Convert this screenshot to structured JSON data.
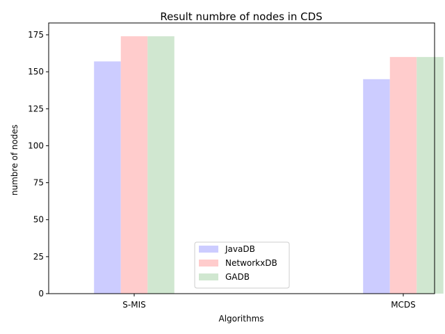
{
  "chart_data": {
    "type": "bar",
    "title": "Result numbre of nodes in CDS",
    "xlabel": "Algorithms",
    "ylabel": "numbre of nodes",
    "categories": [
      "S-MIS",
      "MCDS"
    ],
    "series": [
      {
        "name": "JavaDB",
        "values": [
          157,
          145
        ],
        "color": "#ccccff"
      },
      {
        "name": "NetworkxDB",
        "values": [
          174,
          160
        ],
        "color": "#ffcccc"
      },
      {
        "name": "GADB",
        "values": [
          174,
          160
        ],
        "color": "#d0e7d0"
      }
    ],
    "ylim": [
      0,
      183
    ],
    "yticks": [
      0,
      25,
      50,
      75,
      100,
      125,
      150,
      175
    ],
    "grid": false,
    "legend_position": "bottom-center"
  }
}
